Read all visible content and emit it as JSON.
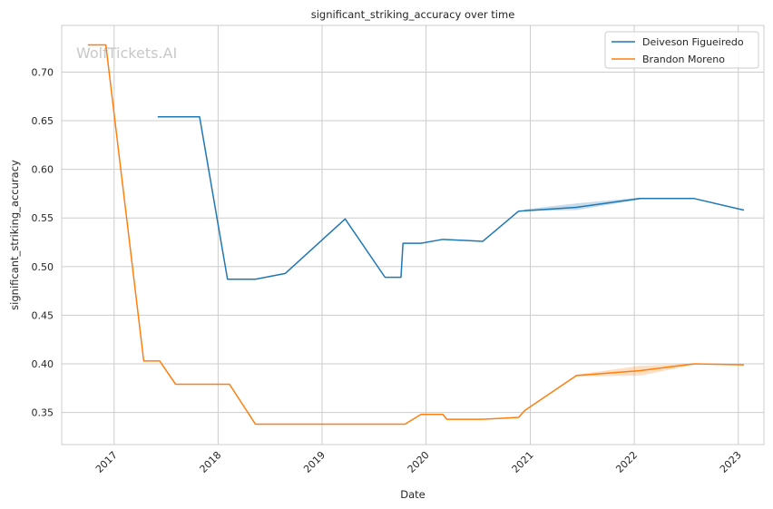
{
  "chart_data": {
    "type": "line",
    "title": "significant_striking_accuracy over time",
    "xlabel": "Date",
    "ylabel": "significant_striking_accuracy",
    "watermark": "WolfTickets.AI",
    "xlim": [
      "2016-07-01",
      "2023-04-01"
    ],
    "ylim": [
      0.317,
      0.748
    ],
    "x_ticks": [
      "2017",
      "2018",
      "2019",
      "2020",
      "2021",
      "2022",
      "2023"
    ],
    "y_ticks": [
      0.35,
      0.4,
      0.45,
      0.5,
      0.55,
      0.6,
      0.65,
      0.7
    ],
    "y_tick_labels": [
      "0.35",
      "0.40",
      "0.45",
      "0.50",
      "0.55",
      "0.60",
      "0.65",
      "0.70"
    ],
    "grid": true,
    "legend_position": "top-right",
    "series": [
      {
        "name": "Deiveson Figueiredo",
        "color": "#1f77b4",
        "points": [
          [
            "2017-06-03",
            0.654
          ],
          [
            "2017-10-28",
            0.654
          ],
          [
            "2018-02-03",
            0.487
          ],
          [
            "2018-05-12",
            0.487
          ],
          [
            "2018-08-25",
            0.493
          ],
          [
            "2019-03-23",
            0.549
          ],
          [
            "2019-08-10",
            0.489
          ],
          [
            "2019-10-05",
            0.489
          ],
          [
            "2019-10-12",
            0.524
          ],
          [
            "2019-12-14",
            0.524
          ],
          [
            "2020-02-29",
            0.528
          ],
          [
            "2020-07-18",
            0.526
          ],
          [
            "2020-11-21",
            0.557
          ],
          [
            "2021-06-12",
            0.561
          ],
          [
            "2022-01-22",
            0.57
          ],
          [
            "2022-07-30",
            0.57
          ],
          [
            "2023-01-21",
            0.558
          ]
        ],
        "band": [
          [
            "2020-12-12",
            0.557,
            0.559
          ],
          [
            "2021-06-12",
            0.558,
            0.565
          ],
          [
            "2022-01-22",
            0.569,
            0.571
          ]
        ]
      },
      {
        "name": "Brandon Moreno",
        "color": "#ff7f0e",
        "points": [
          [
            "2016-10-01",
            0.728
          ],
          [
            "2016-12-03",
            0.728
          ],
          [
            "2017-04-15",
            0.403
          ],
          [
            "2017-06-10",
            0.403
          ],
          [
            "2017-08-05",
            0.379
          ],
          [
            "2018-02-10",
            0.379
          ],
          [
            "2018-05-12",
            0.338
          ],
          [
            "2019-10-19",
            0.338
          ],
          [
            "2019-12-14",
            0.348
          ],
          [
            "2020-02-29",
            0.348
          ],
          [
            "2020-03-14",
            0.343
          ],
          [
            "2020-07-18",
            0.343
          ],
          [
            "2020-11-21",
            0.345
          ],
          [
            "2020-12-12",
            0.352
          ],
          [
            "2021-06-12",
            0.388
          ],
          [
            "2022-01-22",
            0.393
          ],
          [
            "2022-07-30",
            0.4
          ],
          [
            "2023-01-21",
            0.399
          ]
        ],
        "band": [
          [
            "2021-06-12",
            0.387,
            0.389
          ],
          [
            "2022-01-22",
            0.388,
            0.398
          ],
          [
            "2022-07-30",
            0.399,
            0.4
          ]
        ]
      }
    ]
  }
}
